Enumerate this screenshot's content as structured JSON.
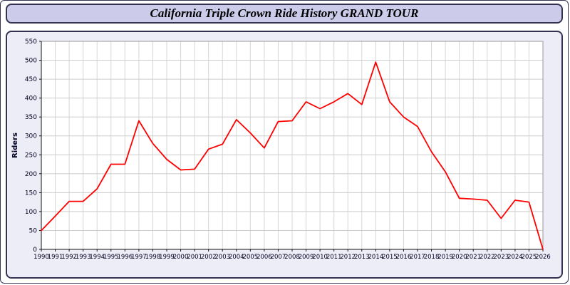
{
  "title": "California Triple Crown Ride History GRAND TOUR",
  "colors": {
    "line": "#ff0000",
    "grid": "#cccccc",
    "vgrid": "#d6d6d6",
    "axis": "#111111",
    "plot_bg": "#ffffff",
    "panel_bg": "#ededf7",
    "title_bar_bg": "#ccccea",
    "border": "#333350"
  },
  "chart_data": {
    "type": "line",
    "title": "California Triple Crown Ride History GRAND TOUR",
    "xlabel": "",
    "ylabel": "Riders",
    "ylim": [
      0,
      550
    ],
    "ytick_interval": 50,
    "grid": true,
    "legend": "none",
    "series_name": "Riders",
    "x": [
      1990,
      1991,
      1992,
      1993,
      1994,
      1995,
      1996,
      1997,
      1998,
      1999,
      2000,
      2001,
      2002,
      2003,
      2004,
      2005,
      2006,
      2007,
      2008,
      2009,
      2010,
      2011,
      2012,
      2013,
      2014,
      2015,
      2016,
      2017,
      2018,
      2019,
      2020,
      2021,
      2022,
      2023,
      2024,
      2025,
      2026
    ],
    "values": [
      50,
      88,
      127,
      127,
      160,
      225,
      225,
      340,
      280,
      238,
      210,
      212,
      265,
      278,
      343,
      308,
      268,
      338,
      340,
      390,
      372,
      390,
      412,
      383,
      495,
      390,
      350,
      325,
      258,
      205,
      135,
      133,
      130,
      82,
      130,
      125,
      0
    ]
  }
}
